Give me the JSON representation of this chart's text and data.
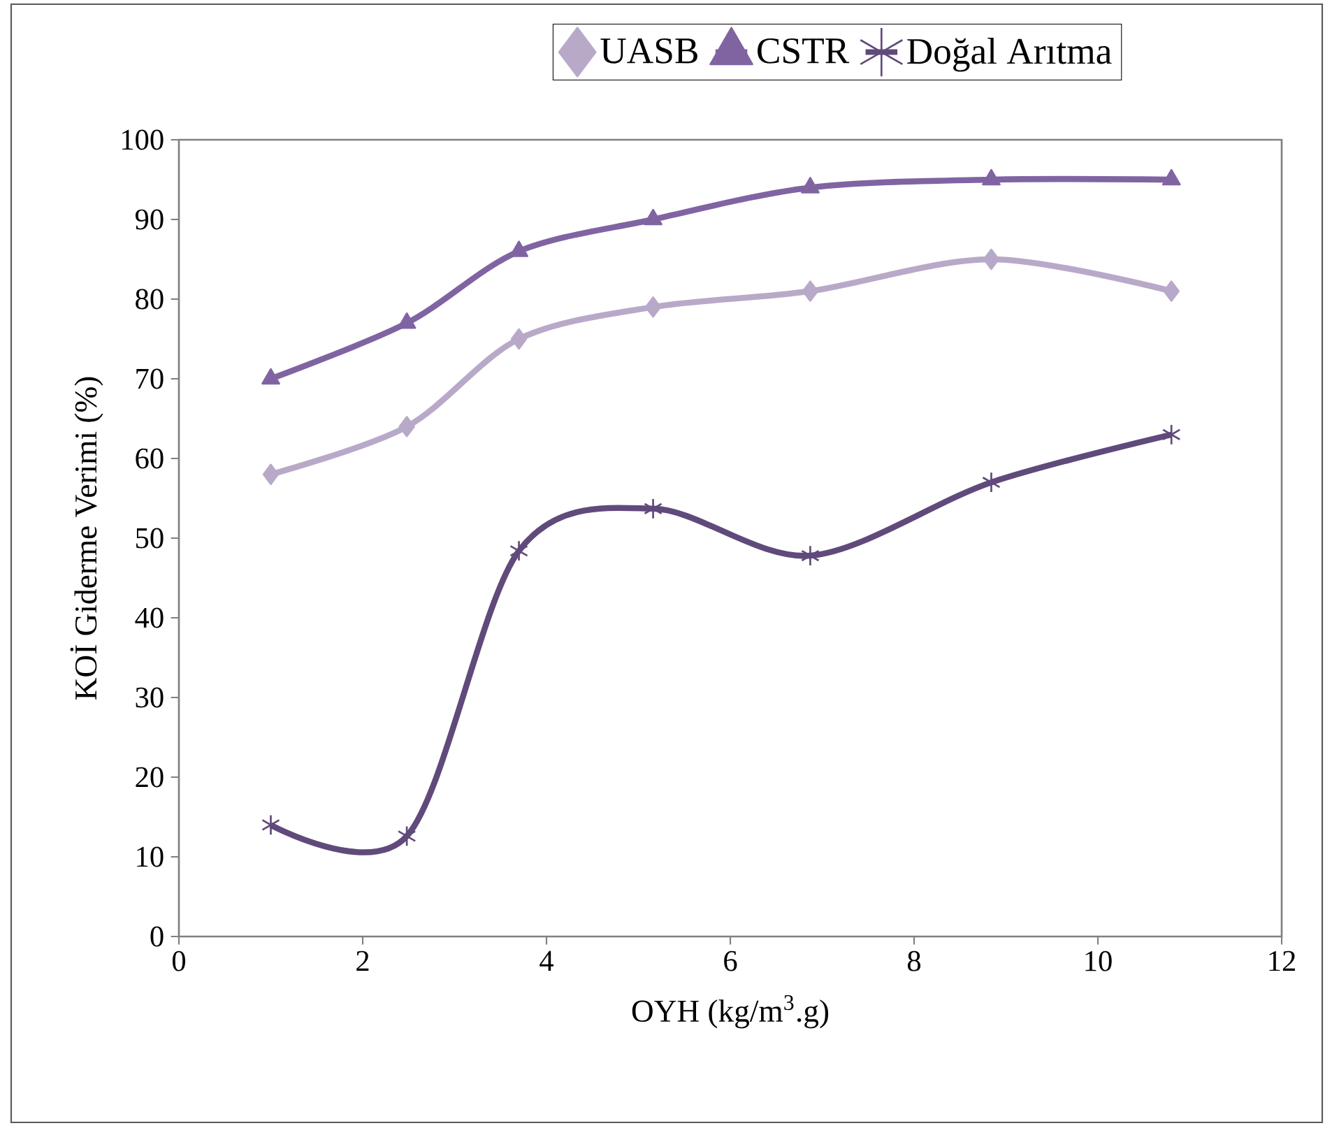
{
  "chart_data": {
    "type": "line",
    "xlabel": "OYH (kg/m$^{3}$.g)",
    "ylabel": "KOİ Giderme Verimi (%)",
    "x": [
      1.0,
      2.48,
      3.7,
      5.16,
      6.87,
      8.84,
      10.8
    ],
    "series": [
      {
        "name": "UASB",
        "color": "#b8a9c9",
        "marker": "diamond",
        "values": [
          58,
          64,
          75,
          79,
          81,
          85,
          81
        ]
      },
      {
        "name": "CSTR",
        "color": "#8064a2",
        "marker": "triangle",
        "values": [
          70,
          77,
          86,
          90,
          94,
          95,
          95
        ]
      },
      {
        "name": "Doğal Arıtma",
        "color": "#604a7b",
        "marker": "cross",
        "values": [
          14,
          12.6,
          48.4,
          53.7,
          47.8,
          57,
          63
        ]
      }
    ],
    "xlim": [
      0,
      12
    ],
    "xticks": [
      0,
      2,
      4,
      6,
      8,
      10,
      12
    ],
    "ylim": [
      0,
      100
    ],
    "yticks": [
      0,
      10,
      20,
      30,
      40,
      50,
      60,
      70,
      80,
      90,
      100
    ],
    "legend": "top",
    "grid": false,
    "line_style": "solid"
  }
}
